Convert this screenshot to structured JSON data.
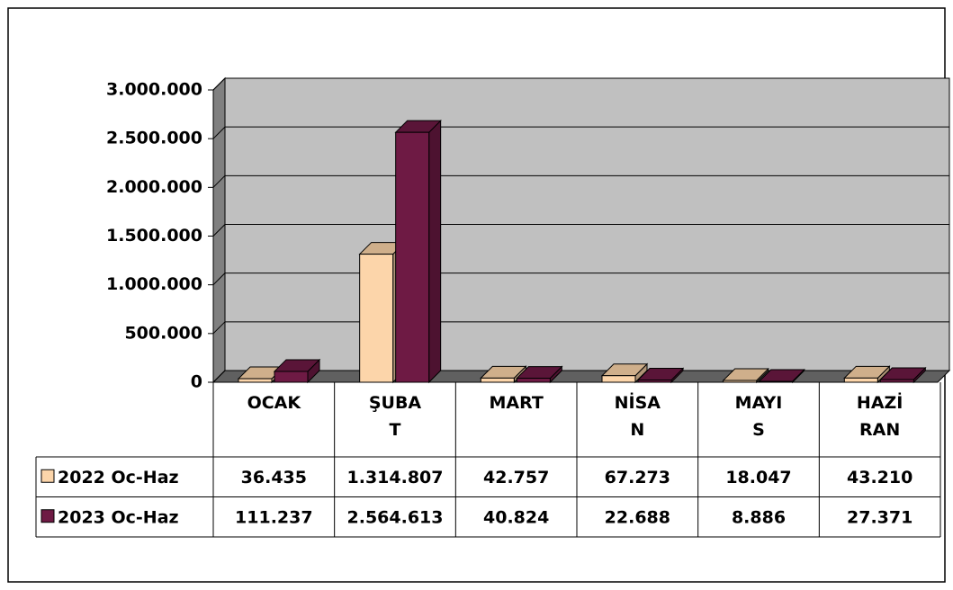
{
  "chart_data": {
    "type": "bar",
    "categories": [
      "OCAK",
      "ŞUBAT",
      "MART",
      "NİSAN",
      "MAYIS",
      "HAZİRAN"
    ],
    "series": [
      {
        "name": "2022 Oc-Haz",
        "color": "#fcd5aa",
        "values": [
          36435,
          1314807,
          42757,
          67273,
          18047,
          43210
        ],
        "value_labels": [
          "36.435",
          "1.314.807",
          "42.757",
          "67.273",
          "18.047",
          "43.210"
        ]
      },
      {
        "name": "2023 Oc-Haz",
        "color": "#6e1a44",
        "values": [
          111237,
          2564613,
          40824,
          22688,
          8886,
          27371
        ],
        "value_labels": [
          "111.237",
          "2.564.613",
          "40.824",
          "22.688",
          "8.886",
          "27.371"
        ]
      }
    ],
    "ylim": [
      0,
      3000000
    ],
    "yticks": [
      0,
      {
        "value": 500000,
        "label": "500.000"
      },
      {
        "value": 1000000,
        "label": "1.000.000"
      },
      {
        "value": 1500000,
        "label": "1.500.000"
      },
      {
        "value": 2000000,
        "label": "2.000.000"
      },
      {
        "value": 2500000,
        "label": "2.500.000"
      },
      {
        "value": 3000000,
        "label": "3.000.000"
      }
    ],
    "grid": true
  }
}
